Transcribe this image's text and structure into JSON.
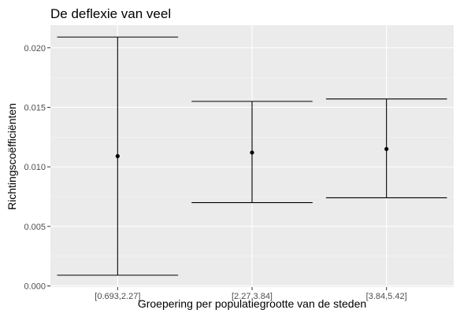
{
  "chart_data": {
    "type": "errorbar",
    "title": "De deflexie van veel",
    "xlabel": "Groepering per populatiegrootte van de steden",
    "ylabel": "Richtingscoëfficiënten",
    "categories": [
      "[0.693,2.27]",
      "[2.27,3.84]",
      "[3.84,5.42]"
    ],
    "estimates": [
      0.0109,
      0.0112,
      0.0115
    ],
    "lower": [
      0.0009,
      0.007,
      0.0074
    ],
    "upper": [
      0.0209,
      0.0155,
      0.0157
    ],
    "yticks": [
      0.0,
      0.005,
      0.01,
      0.015,
      0.02
    ],
    "ytick_labels": [
      "0.000",
      "0.005",
      "0.010",
      "0.015",
      "0.020"
    ],
    "ylim": [
      -0.0001,
      0.0219
    ],
    "grid": true,
    "colors": {
      "panel_background": "#EBEBEB",
      "grid_major": "#FFFFFF",
      "grid_minor": "#F5F5F5",
      "mark": "#000000",
      "tick_text": "#4D4D4D"
    }
  }
}
